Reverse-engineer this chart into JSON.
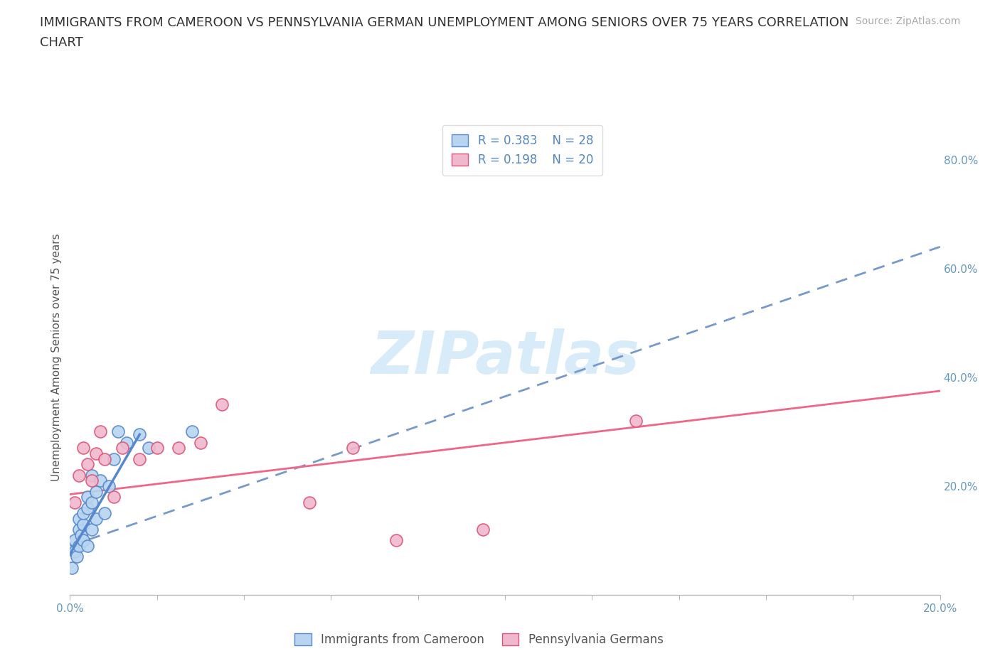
{
  "title_line1": "IMMIGRANTS FROM CAMEROON VS PENNSYLVANIA GERMAN UNEMPLOYMENT AMONG SENIORS OVER 75 YEARS CORRELATION",
  "title_line2": "CHART",
  "source": "Source: ZipAtlas.com",
  "ylabel": "Unemployment Among Seniors over 75 years",
  "xlim": [
    0.0,
    0.2
  ],
  "ylim": [
    0.0,
    0.875
  ],
  "xticks": [
    0.0,
    0.02,
    0.04,
    0.06,
    0.08,
    0.1,
    0.12,
    0.14,
    0.16,
    0.18,
    0.2
  ],
  "xtick_labels": [
    "0.0%",
    "",
    "",
    "",
    "",
    "",
    "",
    "",
    "",
    "",
    "20.0%"
  ],
  "yticks_right": [
    0.0,
    0.2,
    0.4,
    0.6,
    0.8
  ],
  "ytick_labels_right": [
    "",
    "20.0%",
    "40.0%",
    "60.0%",
    "80.0%"
  ],
  "gridline_color": "#cccccc",
  "background_color": "#ffffff",
  "series1_label": "Immigrants from Cameroon",
  "series2_label": "Pennsylvania Germans",
  "series1_color": "#b8d4f0",
  "series2_color": "#f0b8cc",
  "series1_edge_color": "#5588cc",
  "series2_edge_color": "#dd5577",
  "trendline1_color": "#7799cc",
  "trendline2_color": "#ee6688",
  "trendline1_style": "--",
  "trendline2_style": "-",
  "legend_R1": "R = 0.383",
  "legend_N1": "N = 28",
  "legend_R2": "R = 0.198",
  "legend_N2": "N = 20",
  "series1_x": [
    0.0005,
    0.001,
    0.001,
    0.0015,
    0.002,
    0.002,
    0.002,
    0.0025,
    0.003,
    0.003,
    0.003,
    0.004,
    0.004,
    0.004,
    0.005,
    0.005,
    0.005,
    0.006,
    0.006,
    0.007,
    0.008,
    0.009,
    0.01,
    0.011,
    0.013,
    0.016,
    0.018,
    0.028
  ],
  "series1_y": [
    0.05,
    0.08,
    0.1,
    0.07,
    0.09,
    0.12,
    0.14,
    0.11,
    0.1,
    0.13,
    0.15,
    0.09,
    0.16,
    0.18,
    0.12,
    0.17,
    0.22,
    0.14,
    0.19,
    0.21,
    0.15,
    0.2,
    0.25,
    0.3,
    0.28,
    0.295,
    0.27,
    0.3
  ],
  "series2_x": [
    0.001,
    0.002,
    0.003,
    0.004,
    0.005,
    0.006,
    0.007,
    0.008,
    0.01,
    0.012,
    0.016,
    0.02,
    0.025,
    0.03,
    0.035,
    0.055,
    0.065,
    0.075,
    0.095,
    0.13
  ],
  "series2_y": [
    0.17,
    0.22,
    0.27,
    0.24,
    0.21,
    0.26,
    0.3,
    0.25,
    0.18,
    0.27,
    0.25,
    0.27,
    0.27,
    0.28,
    0.35,
    0.17,
    0.27,
    0.1,
    0.12,
    0.32
  ],
  "trendline1_x0": 0.0,
  "trendline1_y0": 0.09,
  "trendline1_x1": 0.2,
  "trendline1_y1": 0.64,
  "trendline2_x0": 0.0,
  "trendline2_y0": 0.185,
  "trendline2_x1": 0.2,
  "trendline2_y1": 0.375,
  "title_fontsize": 13,
  "axis_label_fontsize": 11,
  "tick_fontsize": 11,
  "legend_fontsize": 12,
  "source_fontsize": 10,
  "tick_color": "#6699bb",
  "axis_label_color": "#555555",
  "legend_text_color": "#5588bb",
  "bottom_legend_text_color": "#555555",
  "watermark_text": "ZIPatlas",
  "watermark_color": "#d0e8f8",
  "watermark_fontsize": 60
}
